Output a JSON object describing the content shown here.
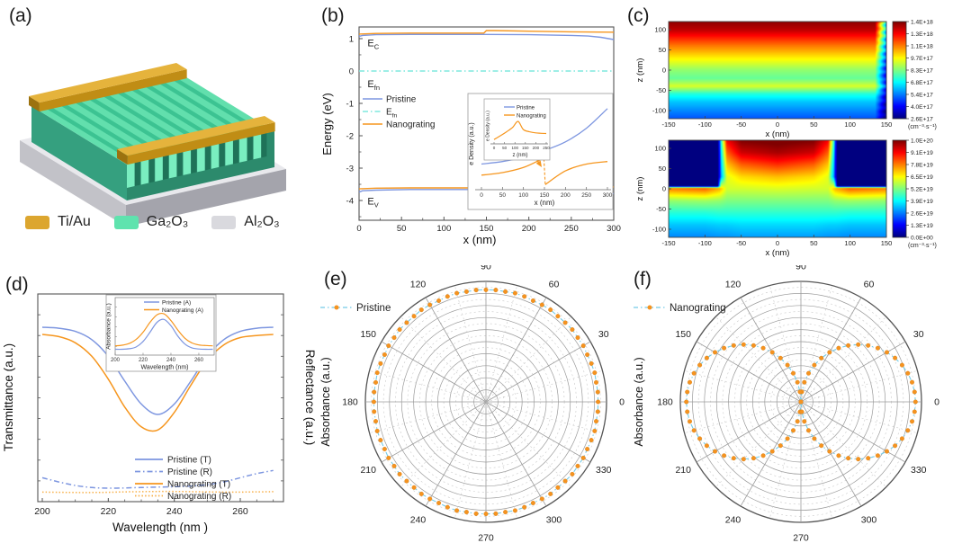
{
  "panels": {
    "a": {
      "label": "(a)",
      "legend": [
        {
          "label": "Ti/Au",
          "color": "#dca62f"
        },
        {
          "label": "Ga₂O₃",
          "color": "#5fe3ae"
        },
        {
          "label": "Al₂O₃",
          "color": "#d9d9de"
        }
      ]
    },
    "b": {
      "label": "(b)"
    },
    "c": {
      "label": "(c)"
    },
    "d": {
      "label": "(d)"
    },
    "e": {
      "label": "(e)"
    },
    "f": {
      "label": "(f)"
    }
  },
  "colors": {
    "blue": "#7d96e0",
    "orange": "#f6961e",
    "orange_light": "#f8b04a",
    "cyan": "#7fe8dd",
    "polar_line": "#74cbe8",
    "dot_orange": "#f59320",
    "grid": "#999999",
    "grid_light": "#c9c9c9"
  },
  "chart_data": [
    {
      "id": "b",
      "type": "line",
      "xlabel": "x (nm)",
      "ylabel": "Energy (eV)",
      "xlim": [
        0,
        300
      ],
      "ylim": [
        -4.61,
        1.36
      ],
      "xticks": [
        0,
        50,
        100,
        150,
        200,
        250,
        300
      ],
      "yticks": [
        1,
        0,
        -1,
        -2,
        -3,
        -4
      ],
      "band_labels": [
        {
          "main": "E",
          "sub": "C",
          "x": 10,
          "y": 0.76
        },
        {
          "main": "E",
          "sub": "fn",
          "x": 10,
          "y": -0.5
        },
        {
          "main": "E",
          "sub": "V",
          "x": 10,
          "y": -4.12
        }
      ],
      "legend": [
        {
          "label": "Pristine",
          "color": "blue",
          "dash": "solid"
        },
        {
          "label": "E",
          "sub": "fn",
          "color": "cyan",
          "dash": "dashdot"
        },
        {
          "label": "Nanograting",
          "color": "orange",
          "dash": "solid"
        }
      ],
      "series": [
        {
          "name": "EC Pristine",
          "color": "blue",
          "x": [
            0,
            4,
            20,
            60,
            100,
            148,
            200,
            250,
            270,
            285,
            300
          ],
          "y": [
            1.07,
            1.1,
            1.12,
            1.13,
            1.13,
            1.13,
            1.12,
            1.1,
            1.08,
            1.04,
            0.97
          ]
        },
        {
          "name": "EC Nanograting",
          "color": "orange",
          "x": [
            0,
            20,
            60,
            100,
            147,
            150,
            160,
            200,
            250,
            300
          ],
          "y": [
            1.14,
            1.16,
            1.17,
            1.17,
            1.17,
            1.25,
            1.25,
            1.23,
            1.21,
            1.2
          ]
        },
        {
          "name": "Efn",
          "color": "cyan",
          "dash": "dashdot",
          "x": [
            0,
            300
          ],
          "y": [
            0,
            0
          ]
        },
        {
          "name": "EV Pristine",
          "color": "blue",
          "x": [
            0,
            4,
            20,
            60,
            100,
            148,
            200,
            250,
            285,
            300
          ],
          "y": [
            -3.74,
            -3.7,
            -3.68,
            -3.66,
            -3.66,
            -3.66,
            -3.67,
            -3.68,
            -3.71,
            -3.79
          ]
        },
        {
          "name": "EV Nanograting",
          "color": "orange",
          "x": [
            0,
            20,
            60,
            100,
            147,
            150,
            200,
            250,
            300
          ],
          "y": [
            -3.64,
            -3.62,
            -3.61,
            -3.61,
            -3.61,
            -3.53,
            -3.55,
            -3.57,
            -3.58
          ]
        }
      ],
      "inset": {
        "xlabel": "x (nm)",
        "ylabel": "e Density (a.u.)",
        "xticks": [
          0,
          50,
          100,
          150,
          200,
          250,
          300
        ],
        "legend": [
          "Pristine",
          "Nanograting"
        ],
        "pristine": {
          "x": [
            0,
            50,
            100,
            150,
            200,
            250,
            300
          ],
          "y": [
            0.3,
            0.33,
            0.38,
            0.46,
            0.56,
            0.72,
            0.95
          ]
        },
        "nanograting_solid1": {
          "x": [
            0,
            50,
            100,
            140
          ],
          "y": [
            0.17,
            0.2,
            0.26,
            0.35
          ]
        },
        "nanograting_dashed": {
          "x": [
            140,
            148,
            152
          ],
          "y": [
            0.35,
            0.43,
            0.06
          ]
        },
        "nanograting_solid2": {
          "x": [
            152,
            200,
            250,
            300
          ],
          "y": [
            0.06,
            0.22,
            0.3,
            0.33
          ]
        },
        "inner_inset": {
          "xlabel": "z (nm)",
          "ylabel": "e Density (a.u.)",
          "xticks": [
            0,
            50,
            100,
            150,
            200,
            250
          ],
          "profile": {
            "x": [
              0,
              30,
              60,
              90,
              115,
              140,
              170,
              200,
              250
            ],
            "y": [
              0.15,
              0.28,
              0.42,
              0.58,
              0.78,
              0.5,
              0.42,
              0.38,
              0.36
            ]
          }
        }
      }
    },
    {
      "id": "c_top",
      "type": "heatmap",
      "xlabel": "x (nm)",
      "ylabel": "z (nm)",
      "xlim": [
        -150,
        150
      ],
      "zlim": [
        -120,
        120
      ],
      "xticks": [
        -150,
        -100,
        -50,
        0,
        50,
        100,
        150
      ],
      "yticks": [
        100,
        50,
        0,
        -50,
        -100
      ],
      "vmin": 2.6e+17,
      "vmax": 1.4e+18,
      "colorbar_labels": [
        "1.4E+18",
        "1.3E+18",
        "1.1E+18",
        "9.7E+17",
        "8.3E+17",
        "6.8E+17",
        "5.4E+17",
        "4.0E+17",
        "2.6E+17"
      ],
      "units": "(cm⁻³·s⁻¹)",
      "z_profile": {
        "z": [
          120,
          100,
          80,
          60,
          40,
          20,
          0,
          -20,
          -40,
          -60,
          -80,
          -100,
          -120
        ],
        "v": [
          1.38e+18,
          1.33e+18,
          1.22e+18,
          1.12e+18,
          1.03e+18,
          9.4e+17,
          8.5e+17,
          8e+17,
          9.3e+17,
          7.2e+17,
          6.2e+17,
          5.6e+17,
          5e+17
        ]
      },
      "edge_falloff_x": 135
    },
    {
      "id": "c_bottom",
      "type": "heatmap",
      "xlabel": "x (nm)",
      "ylabel": "z (nm)",
      "xlim": [
        -150,
        150
      ],
      "zlim": [
        -120,
        120
      ],
      "xticks": [
        -150,
        -100,
        -50,
        0,
        50,
        100,
        150
      ],
      "yticks": [
        100,
        50,
        0,
        -50,
        -100
      ],
      "vmin": 0,
      "vmax": 1e+20,
      "colorbar_labels": [
        "1.0E+20",
        "9.1E+19",
        "7.8E+19",
        "6.5E+19",
        "5.2E+19",
        "3.9E+19",
        "2.6E+19",
        "1.3E+19",
        "0.0E+00"
      ],
      "units": "(cm⁻³·s⁻¹)",
      "grid_x": [
        -150,
        -100,
        -80,
        -70,
        -50,
        0,
        50,
        70,
        80,
        100,
        150
      ],
      "grid_z": [
        120,
        90,
        60,
        30,
        0,
        -30,
        -60,
        -90,
        -120
      ],
      "grid_v": [
        [
          0,
          0,
          3e+19,
          8.8e+19,
          1e+20,
          1.02e+20,
          1e+20,
          8.8e+19,
          3e+19,
          0,
          0
        ],
        [
          0,
          0,
          2.5e+19,
          7.8e+19,
          9.2e+19,
          9.6e+19,
          9.2e+19,
          7.8e+19,
          2.5e+19,
          0,
          0
        ],
        [
          0,
          0,
          2.2e+19,
          6.8e+19,
          7.8e+19,
          8.3e+19,
          7.8e+19,
          6.8e+19,
          2.2e+19,
          0,
          0
        ],
        [
          0,
          0,
          2e+19,
          6e+19,
          6.6e+19,
          6.9e+19,
          6.6e+19,
          6e+19,
          2e+19,
          0,
          0
        ],
        [
          7.5e+19,
          7.8e+19,
          7e+19,
          5.8e+19,
          5.8e+19,
          5.9e+19,
          5.8e+19,
          5.8e+19,
          7e+19,
          7.8e+19,
          7.5e+19
        ],
        [
          5.2e+19,
          5.3e+19,
          5.2e+19,
          5e+19,
          5e+19,
          5e+19,
          5e+19,
          5e+19,
          5.2e+19,
          5.3e+19,
          5.2e+19
        ],
        [
          4.1e+19,
          4.1e+19,
          4.2e+19,
          4.2e+19,
          4.2e+19,
          4.2e+19,
          4.2e+19,
          4.2e+19,
          4.2e+19,
          4.1e+19,
          4.1e+19
        ],
        [
          3.2e+19,
          3.2e+19,
          3.3e+19,
          3.3e+19,
          3.4e+19,
          3.4e+19,
          3.4e+19,
          3.3e+19,
          3.3e+19,
          3.2e+19,
          3.2e+19
        ],
        [
          2.6e+19,
          2.6e+19,
          2.7e+19,
          2.7e+19,
          2.8e+19,
          2.8e+19,
          2.8e+19,
          2.7e+19,
          2.7e+19,
          2.6e+19,
          2.6e+19
        ]
      ],
      "trench": {
        "abs_x_min": 82,
        "z_min": 6,
        "value": 0
      }
    },
    {
      "id": "d",
      "type": "line",
      "xlabel": "Wavelength (nm )",
      "ylabel_left": "Transmittance (a.u.)",
      "ylabel_right": "Reflectance (a.u.)",
      "xlim": [
        200,
        271
      ],
      "xticks": [
        200,
        220,
        240,
        260
      ],
      "wavelengths": [
        200,
        205,
        210,
        215,
        220,
        225,
        230,
        235,
        240,
        245,
        250,
        255,
        260,
        265,
        270
      ],
      "series": [
        {
          "name": "Pristine (T)",
          "color": "blue",
          "dash": "solid",
          "values": [
            0.84,
            0.835,
            0.82,
            0.78,
            0.7,
            0.58,
            0.47,
            0.42,
            0.47,
            0.58,
            0.7,
            0.78,
            0.82,
            0.835,
            0.84
          ]
        },
        {
          "name": "Pristine (R)",
          "color": "blue",
          "dash": "dashdot",
          "values": [
            0.115,
            0.095,
            0.078,
            0.068,
            0.065,
            0.066,
            0.068,
            0.07,
            0.072,
            0.075,
            0.082,
            0.095,
            0.115,
            0.135,
            0.15
          ]
        },
        {
          "name": "Nanograting (T)",
          "color": "orange",
          "dash": "solid",
          "values": [
            0.805,
            0.795,
            0.765,
            0.7,
            0.59,
            0.455,
            0.36,
            0.345,
            0.43,
            0.56,
            0.68,
            0.755,
            0.79,
            0.8,
            0.805
          ]
        },
        {
          "name": "Nanograting (R)",
          "color": "orange_light",
          "dash": "dot",
          "values": [
            0.046,
            0.045,
            0.044,
            0.044,
            0.045,
            0.047,
            0.048,
            0.049,
            0.049,
            0.048,
            0.047,
            0.046,
            0.046,
            0.047,
            0.048
          ]
        }
      ],
      "inset": {
        "xlabel": "Wavelength (nm)",
        "ylabel": "Absorbance (a.u.)",
        "xticks": [
          200,
          220,
          240,
          260
        ],
        "series": [
          {
            "name": "Pristine (A)",
            "color": "blue",
            "values": [
              0.1,
              0.1,
              0.11,
              0.14,
              0.235,
              0.395,
              0.565,
              0.615,
              0.505,
              0.325,
              0.19,
              0.125,
              0.105,
              0.1,
              0.1
            ]
          },
          {
            "name": "Nanograting (A)",
            "color": "orange",
            "values": [
              0.16,
              0.17,
              0.2,
              0.27,
              0.395,
              0.565,
              0.695,
              0.71,
              0.595,
              0.43,
              0.29,
              0.21,
              0.175,
              0.165,
              0.16
            ]
          }
        ]
      }
    },
    {
      "id": "e",
      "type": "polar-scatter",
      "legend_label": "Pristine",
      "axis_label": "Absorbance (a.u.)",
      "angle_labels": [
        0,
        30,
        60,
        90,
        120,
        150,
        180,
        210,
        240,
        270,
        300,
        330
      ],
      "angle_step_deg": 5,
      "symmetry": "mirror-quadrant",
      "r_quadrant": [
        0.93,
        0.931,
        0.928,
        0.933,
        0.93,
        0.927,
        0.932,
        0.929,
        0.934,
        0.93,
        0.928,
        0.933,
        0.93,
        0.926,
        0.931,
        0.934,
        0.929,
        0.932,
        0.93
      ],
      "rings": 10,
      "rmax": 1.0
    },
    {
      "id": "f",
      "type": "polar-scatter",
      "legend_label": "Nanograting",
      "axis_label": "Absorbance (a.u.)",
      "angle_labels": [
        0,
        30,
        60,
        90,
        120,
        150,
        180,
        210,
        240,
        270,
        300,
        330
      ],
      "angle_step_deg": 5,
      "symmetry": "mirror-quadrant",
      "r_quadrant": [
        0.95,
        0.946,
        0.936,
        0.918,
        0.893,
        0.861,
        0.823,
        0.778,
        0.728,
        0.672,
        0.611,
        0.545,
        0.475,
        0.401,
        0.325,
        0.246,
        0.165,
        0.083,
        0.0
      ],
      "rings": 10,
      "rmax": 1.0
    }
  ]
}
